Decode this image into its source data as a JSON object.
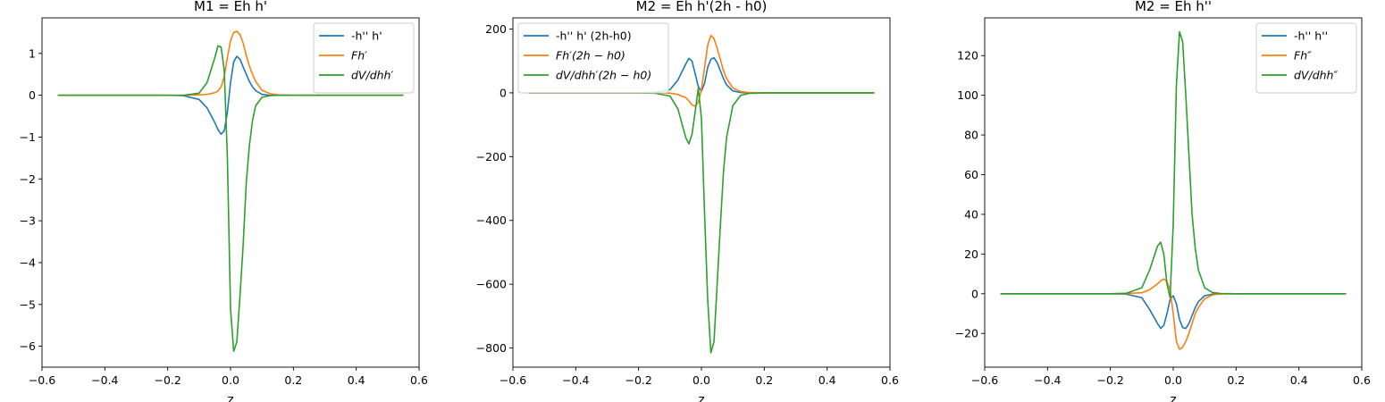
{
  "chart_data": [
    {
      "type": "line",
      "title": "M1 = Eh h'",
      "xlabel": "z",
      "ylabel": "",
      "xlim": [
        -0.6,
        0.6
      ],
      "ylim": [
        -6.5,
        1.85
      ],
      "xticks": [
        -0.6,
        -0.4,
        -0.2,
        0.0,
        0.2,
        0.4,
        0.6
      ],
      "xtick_labels": [
        "−0.6",
        "−0.4",
        "−0.2",
        "0.0",
        "0.2",
        "0.4",
        "0.6"
      ],
      "yticks": [
        1,
        0,
        -1,
        -2,
        -3,
        -4,
        -5,
        -6
      ],
      "ytick_labels": [
        "1",
        "0",
        "−1",
        "−2",
        "−3",
        "−4",
        "−5",
        "−6"
      ],
      "legend_position": "top-right",
      "x": [
        -0.55,
        -0.2,
        -0.15,
        -0.1,
        -0.075,
        -0.05,
        -0.04,
        -0.03,
        -0.02,
        -0.01,
        0.0,
        0.01,
        0.02,
        0.03,
        0.04,
        0.05,
        0.06,
        0.07,
        0.08,
        0.1,
        0.125,
        0.15,
        0.2,
        0.55
      ],
      "series": [
        {
          "name": "-h'' h'",
          "color": "#1f77b4",
          "values": [
            0,
            0,
            -0.01,
            -0.1,
            -0.3,
            -0.65,
            -0.82,
            -0.93,
            -0.85,
            -0.4,
            0.3,
            0.8,
            0.93,
            0.86,
            0.68,
            0.5,
            0.33,
            0.2,
            0.11,
            0.02,
            0.0,
            0.0,
            0,
            0
          ]
        },
        {
          "name": "Fh′",
          "color": "#ff7f0e",
          "values": [
            0,
            0,
            0.0,
            0.01,
            0.02,
            0.06,
            0.1,
            0.2,
            0.45,
            0.9,
            1.3,
            1.5,
            1.53,
            1.45,
            1.25,
            0.95,
            0.7,
            0.5,
            0.33,
            0.12,
            0.04,
            0.01,
            0,
            0
          ]
        },
        {
          "name": "dV/dhh′",
          "color": "#2ca02c",
          "values": [
            0,
            0,
            0.0,
            0.05,
            0.3,
            0.9,
            1.18,
            1.15,
            0.6,
            -1.5,
            -5.1,
            -6.12,
            -5.9,
            -4.8,
            -3.6,
            -2.1,
            -1.2,
            -0.6,
            -0.25,
            -0.05,
            -0.01,
            0.0,
            0,
            0
          ]
        }
      ]
    },
    {
      "type": "line",
      "title": "M2 = Eh h'(2h - h0)",
      "xlabel": "z",
      "ylabel": "",
      "xlim": [
        -0.6,
        0.6
      ],
      "ylim": [
        -860,
        235
      ],
      "xticks": [
        -0.6,
        -0.4,
        -0.2,
        0.0,
        0.2,
        0.4,
        0.6
      ],
      "xtick_labels": [
        "−0.6",
        "−0.4",
        "−0.2",
        "0.0",
        "0.2",
        "0.4",
        "0.6"
      ],
      "yticks": [
        200,
        0,
        -200,
        -400,
        -600,
        -800
      ],
      "ytick_labels": [
        "200",
        "0",
        "−200",
        "−400",
        "−600",
        "−800"
      ],
      "legend_position": "top-left",
      "x": [
        -0.55,
        -0.2,
        -0.15,
        -0.1,
        -0.075,
        -0.05,
        -0.04,
        -0.03,
        -0.02,
        -0.01,
        0.0,
        0.01,
        0.02,
        0.03,
        0.04,
        0.05,
        0.06,
        0.07,
        0.08,
        0.1,
        0.125,
        0.15,
        0.2,
        0.55
      ],
      "series": [
        {
          "name": "-h'' h' (2h-h0)",
          "color": "#1f77b4",
          "values": [
            0,
            0,
            1,
            10,
            40,
            90,
            108,
            100,
            60,
            20,
            5,
            30,
            80,
            105,
            110,
            95,
            70,
            45,
            25,
            6,
            1,
            0,
            0,
            0
          ]
        },
        {
          "name": "Fh′(2h − h0)",
          "color": "#ff7f0e",
          "values": [
            0,
            0,
            0,
            -1,
            -5,
            -15,
            -25,
            -38,
            -42,
            -30,
            10,
            80,
            150,
            180,
            170,
            140,
            105,
            70,
            45,
            15,
            4,
            1,
            0,
            0
          ]
        },
        {
          "name": "dV/dhh′(2h − h0)",
          "color": "#2ca02c",
          "values": [
            0,
            0,
            -1,
            -10,
            -50,
            -140,
            -160,
            -130,
            -60,
            15,
            -80,
            -380,
            -650,
            -815,
            -780,
            -600,
            -420,
            -250,
            -140,
            -40,
            -8,
            -2,
            0,
            0
          ]
        }
      ]
    },
    {
      "type": "line",
      "title": "M2 = Eh h''",
      "xlabel": "z",
      "ylabel": "",
      "xlim": [
        -0.6,
        0.6
      ],
      "ylim": [
        -37,
        139
      ],
      "xticks": [
        -0.6,
        -0.4,
        -0.2,
        0.0,
        0.2,
        0.4,
        0.6
      ],
      "xtick_labels": [
        "−0.6",
        "−0.4",
        "−0.2",
        "0.0",
        "0.2",
        "0.4",
        "0.6"
      ],
      "yticks": [
        120,
        100,
        80,
        60,
        40,
        20,
        0,
        -20
      ],
      "ytick_labels": [
        "120",
        "100",
        "80",
        "60",
        "40",
        "20",
        "0",
        "−20"
      ],
      "legend_position": "top-right",
      "x": [
        -0.55,
        -0.2,
        -0.15,
        -0.1,
        -0.075,
        -0.05,
        -0.04,
        -0.03,
        -0.02,
        -0.01,
        0.0,
        0.01,
        0.02,
        0.03,
        0.04,
        0.05,
        0.06,
        0.07,
        0.08,
        0.1,
        0.125,
        0.15,
        0.2,
        0.55
      ],
      "series": [
        {
          "name": "-h'' h''",
          "color": "#1f77b4",
          "values": [
            0,
            0,
            -0.2,
            -2,
            -8,
            -15,
            -17.5,
            -16,
            -10,
            -3,
            -1,
            -5,
            -13,
            -17,
            -17.5,
            -15,
            -11,
            -7,
            -4,
            -1,
            -0.2,
            0,
            0,
            0
          ]
        },
        {
          "name": "Fh″",
          "color": "#ff7f0e",
          "values": [
            0,
            0,
            0.1,
            0.5,
            2,
            5,
            6.5,
            7.5,
            6,
            2,
            -10,
            -24,
            -28,
            -27,
            -24,
            -20,
            -15,
            -10,
            -7,
            -2.5,
            -0.6,
            -0.1,
            0,
            0
          ]
        },
        {
          "name": "dV/dhh″",
          "color": "#2ca02c",
          "values": [
            0,
            0,
            0.2,
            3,
            12,
            24,
            26,
            20,
            5,
            -2,
            35,
            105,
            132,
            127,
            100,
            70,
            40,
            23,
            12,
            3,
            0.6,
            0.1,
            0,
            0
          ]
        }
      ]
    }
  ]
}
